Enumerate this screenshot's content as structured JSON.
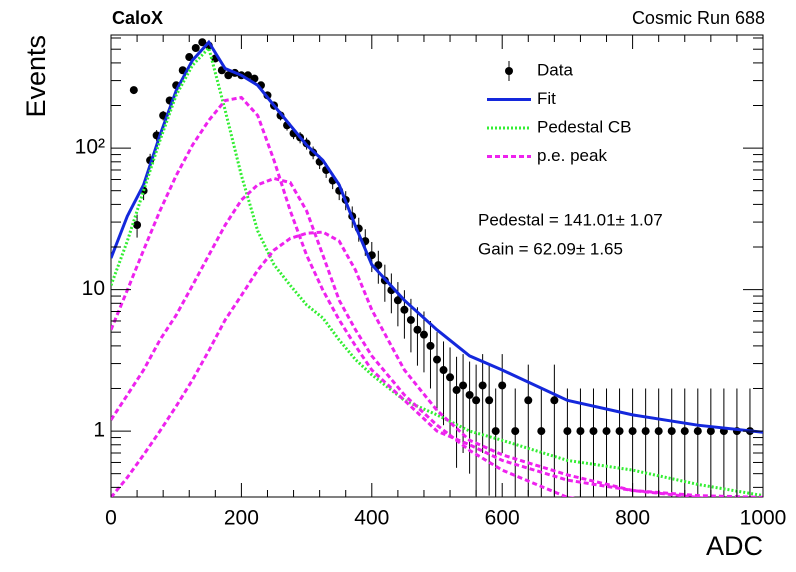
{
  "chart_data": {
    "type": "scatter",
    "title": "CaloX",
    "subtitle": "Cosmic Run 688",
    "x_label": "ADC",
    "y_label": "Events",
    "annotations": [
      "Pedestal = 141.01± 1.07",
      "Gain = 62.09± 1.65"
    ],
    "xlim": [
      0,
      1000
    ],
    "xticks": [
      0,
      200,
      400,
      600,
      800,
      1000
    ],
    "xminor_ticks": [
      40,
      80,
      120,
      160,
      240,
      280,
      320,
      360,
      440,
      480,
      520,
      560,
      640,
      680,
      720,
      760,
      840,
      880,
      920,
      960
    ],
    "ylim": [
      0.342,
      630
    ],
    "log_y": true,
    "yticks": [
      1,
      10,
      {
        "value": 100,
        "label": "10²"
      }
    ],
    "yminor_ticks": [
      0.4,
      0.5,
      0.6,
      0.7,
      0.8,
      0.9,
      2,
      3,
      4,
      5,
      6,
      7,
      8,
      9,
      20,
      30,
      40,
      50,
      60,
      70,
      80,
      90,
      200,
      300,
      400,
      500,
      600
    ],
    "grid": false,
    "legend": "top-right",
    "series": [
      {
        "name": "Data",
        "kind": "points",
        "color": "#000000",
        "x": [
          35,
          40,
          50,
          60,
          70,
          80,
          90,
          100,
          110,
          120,
          130,
          140,
          150,
          160,
          170,
          180,
          190,
          200,
          210,
          220,
          230,
          240,
          250,
          260,
          270,
          280,
          290,
          300,
          310,
          320,
          330,
          340,
          350,
          360,
          370,
          380,
          390,
          400,
          410,
          420,
          430,
          440,
          450,
          460,
          470,
          480,
          490,
          500,
          510,
          520,
          530,
          540,
          550,
          560,
          570,
          580,
          590,
          600,
          620,
          640,
          660,
          680,
          700,
          720,
          740,
          760,
          780,
          800,
          820,
          840,
          860,
          880,
          900,
          920,
          940,
          960,
          980
        ],
        "values": [
          257,
          28.6,
          50,
          82,
          123,
          170,
          217,
          278,
          355,
          440,
          510,
          560,
          530,
          430,
          355,
          327,
          340,
          327,
          327,
          310,
          278,
          236,
          200,
          170,
          145,
          127,
          119,
          108,
          93,
          80,
          70,
          59,
          50,
          43,
          33,
          27,
          22,
          17.5,
          14.9,
          11.6,
          9.9,
          8.4,
          7.2,
          6.1,
          5.2,
          4.8,
          4.0,
          3.2,
          2.7,
          2.4,
          1.95,
          2.1,
          1.8,
          1.65,
          2.1,
          1.65,
          1,
          2.1,
          1,
          1.65,
          1,
          1.65,
          1,
          1,
          1,
          1,
          1,
          1,
          1,
          1,
          1,
          1,
          1,
          1,
          1,
          1,
          1
        ],
        "errors": [
          16,
          5.3,
          7.1,
          9.1,
          11.1,
          13,
          14.7,
          16.7,
          18.8,
          21,
          22.6,
          23.7,
          23,
          20.7,
          18.8,
          18.1,
          18.4,
          18.1,
          18.1,
          17.6,
          16.7,
          15.4,
          14.1,
          13,
          12,
          11.3,
          10.9,
          10.4,
          9.6,
          8.9,
          8.4,
          7.7,
          7.1,
          6.6,
          5.7,
          5.2,
          4.7,
          4.2,
          3.9,
          3.4,
          3.1,
          2.9,
          2.7,
          2.5,
          2.3,
          2.2,
          2,
          1.8,
          1.6,
          1.5,
          1.4,
          1.4,
          1.3,
          1.3,
          1.4,
          1.3,
          1,
          1.4,
          1,
          1.3,
          1,
          1.3,
          1,
          1,
          1,
          1,
          1,
          1,
          1,
          1,
          1,
          1,
          1,
          1,
          1,
          1,
          1
        ]
      },
      {
        "name": "Fit",
        "kind": "line",
        "color": "#1428dc",
        "style": "solid",
        "x": [
          0,
          25,
          50,
          75,
          100,
          125,
          150,
          175,
          200,
          225,
          250,
          275,
          300,
          325,
          350,
          375,
          400,
          450,
          500,
          550,
          600,
          700,
          800,
          900,
          1000
        ],
        "values": [
          16.7,
          33,
          55,
          123,
          255,
          418,
          560,
          365,
          327,
          278,
          200,
          145,
          105,
          82,
          55,
          28,
          15,
          8.4,
          5.2,
          3.4,
          2.7,
          1.65,
          1.3,
          1.1,
          0.98
        ]
      },
      {
        "name": "Pedestal CB",
        "kind": "line",
        "color": "#33ee33",
        "style": "dotted",
        "x": [
          0,
          25,
          50,
          75,
          100,
          125,
          150,
          175,
          200,
          225,
          250,
          275,
          300,
          325,
          350,
          375,
          400,
          450,
          500,
          550,
          600,
          700,
          800,
          900,
          1000
        ],
        "values": [
          10.7,
          22,
          50,
          113,
          237,
          385,
          510,
          186,
          64,
          26,
          15,
          10.7,
          7.8,
          6.3,
          4.4,
          3.2,
          2.5,
          1.65,
          1.3,
          1.0,
          0.86,
          0.62,
          0.53,
          0.42,
          0.35
        ]
      },
      {
        "name": "p.e. peak",
        "kind": "lines",
        "color": "#ee22ee",
        "style": "dashed",
        "x": [
          0,
          25,
          50,
          75,
          100,
          125,
          150,
          175,
          200,
          225,
          250,
          275,
          300,
          325,
          350,
          375,
          400,
          450,
          500,
          550,
          600,
          700,
          800,
          900,
          1000
        ],
        "curves": [
          [
            5.2,
            9.9,
            19,
            36,
            64,
            105,
            157,
            217,
            228,
            170,
            82,
            36,
            17.5,
            9.9,
            6.1,
            4.0,
            2.7,
            1.65,
            1.0,
            0.8,
            0.62,
            0.45,
            0.38,
            0.35,
            0.34
          ],
          [
            1.2,
            1.8,
            2.7,
            4.4,
            6.6,
            10.7,
            17.5,
            28.5,
            43,
            55,
            61,
            57,
            36,
            17.5,
            8.4,
            5.2,
            3.4,
            1.8,
            1.1,
            0.73,
            0.53,
            0.34,
            0.3,
            0.3,
            0.3
          ],
          [
            0.34,
            0.47,
            0.68,
            1.0,
            1.5,
            2.3,
            3.7,
            6.1,
            9.1,
            13.7,
            19,
            23,
            25,
            25.5,
            22,
            13.7,
            7.2,
            2.7,
            1.4,
            0.86,
            0.68,
            0.49,
            0.38,
            0.34,
            0.3
          ]
        ]
      }
    ]
  }
}
